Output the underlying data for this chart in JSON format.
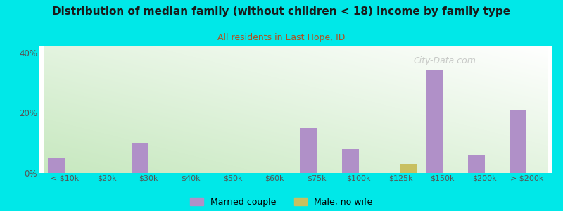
{
  "title": "Distribution of median family (without children < 18) income by family type",
  "subtitle": "All residents in East Hope, ID",
  "title_color": "#1a1a1a",
  "subtitle_color": "#b05020",
  "background_color": "#00e8e8",
  "categories": [
    "< $10k",
    "$20k",
    "$30k",
    "$40k",
    "$50k",
    "$60k",
    "$75k",
    "$100k",
    "$125k",
    "$150k",
    "$200k",
    "> $200k"
  ],
  "married_couple": [
    5,
    0,
    10,
    0,
    0,
    0,
    15,
    8,
    0,
    34,
    6,
    21
  ],
  "male_no_wife": [
    0,
    0,
    0,
    0,
    0,
    0,
    0,
    0,
    3,
    0,
    0,
    0
  ],
  "married_color": "#b090c8",
  "male_color": "#c8c060",
  "legend_married": "Married couple",
  "legend_male": "Male, no wife",
  "ylim": [
    0,
    42
  ],
  "yticks": [
    0,
    20,
    40
  ],
  "ytick_labels": [
    "0%",
    "20%",
    "40%"
  ],
  "grid_color": "#e0b0b0",
  "bar_width": 0.4,
  "figsize": [
    8.0,
    3.0
  ],
  "dpi": 100,
  "watermark": "City-Data.com"
}
